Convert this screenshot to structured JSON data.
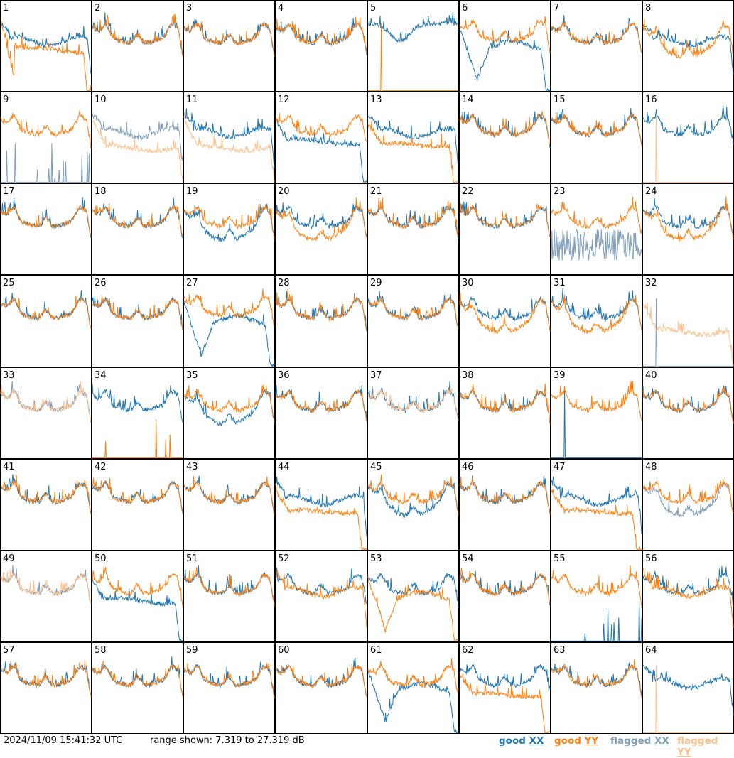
{
  "footer": {
    "timestamp": "2024/11/09 15:41:32 UTC",
    "range_label": "range shown:",
    "range_min": "7.319",
    "range_to": "to",
    "range_max": "27.319",
    "range_unit": "dB"
  },
  "legend": [
    {
      "quality": "good",
      "pol": "XX",
      "color": "#1f77b4"
    },
    {
      "quality": "good",
      "pol": "YY",
      "color": "#ff7f0e"
    },
    {
      "quality": "flagged",
      "pol": "XX",
      "color": "#7fa0bb"
    },
    {
      "quality": "flagged",
      "pol": "YY",
      "color": "#ffc08c"
    }
  ],
  "colors": {
    "good_xx": "#1f77b4",
    "good_yy": "#ff7f0e",
    "flagged_xx": "#7f9fba",
    "flagged_yy": "#ffbf8b",
    "panel_border": "#000000"
  },
  "chart_data": {
    "type": "line",
    "grid": "8x8 small multiples",
    "ylim": [
      7.319,
      27.319
    ],
    "yunit": "dB",
    "panels": [
      {
        "id": "1",
        "xx": "good",
        "yy": "good",
        "xx_shape": "flat-mid",
        "yy_shape": "drop-dropout"
      },
      {
        "id": "2",
        "xx": "good",
        "yy": "good",
        "xx_shape": "bowl",
        "yy_shape": "bowl"
      },
      {
        "id": "3",
        "xx": "good",
        "yy": "good",
        "xx_shape": "bowl",
        "yy_shape": "bowl"
      },
      {
        "id": "4",
        "xx": "good",
        "yy": "good",
        "xx_shape": "bowl",
        "yy_shape": "bowl"
      },
      {
        "id": "5",
        "xx": "good",
        "yy": "good",
        "xx_shape": "high-dip",
        "yy_shape": "floor-spike"
      },
      {
        "id": "6",
        "xx": "good",
        "yy": "good",
        "xx_shape": "deep-drop",
        "yy_shape": "bowl-high"
      },
      {
        "id": "7",
        "xx": "good",
        "yy": "good",
        "xx_shape": "bowl",
        "yy_shape": "bowl"
      },
      {
        "id": "8",
        "xx": "good",
        "yy": "good",
        "xx_shape": "flat-mid",
        "yy_shape": "bowl-low"
      },
      {
        "id": "9",
        "xx": "flagged",
        "yy": "good",
        "xx_shape": "floor-spikes",
        "yy_shape": "bowl"
      },
      {
        "id": "10",
        "xx": "flagged",
        "yy": "flagged",
        "xx_shape": "flat-mid",
        "yy_shape": "flat-low"
      },
      {
        "id": "11",
        "xx": "good",
        "yy": "flagged",
        "xx_shape": "flat-mid",
        "yy_shape": "flat-low"
      },
      {
        "id": "12",
        "xx": "good",
        "yy": "good",
        "xx_shape": "flat-drop",
        "yy_shape": "bowl"
      },
      {
        "id": "13",
        "xx": "good",
        "yy": "good",
        "xx_shape": "flat-mid",
        "yy_shape": "flat-low-drop"
      },
      {
        "id": "14",
        "xx": "good",
        "yy": "good",
        "xx_shape": "bowl",
        "yy_shape": "bowl"
      },
      {
        "id": "15",
        "xx": "good",
        "yy": "good",
        "xx_shape": "bowl",
        "yy_shape": "bowl"
      },
      {
        "id": "16",
        "xx": "good",
        "yy": "flagged",
        "xx_shape": "bowl",
        "yy_shape": "floor-spike"
      },
      {
        "id": "17",
        "xx": "good",
        "yy": "good",
        "xx_shape": "bowl",
        "yy_shape": "bowl"
      },
      {
        "id": "18",
        "xx": "good",
        "yy": "good",
        "xx_shape": "bowl",
        "yy_shape": "bowl"
      },
      {
        "id": "19",
        "xx": "good",
        "yy": "good",
        "xx_shape": "bowl-low",
        "yy_shape": "bowl"
      },
      {
        "id": "20",
        "xx": "good",
        "yy": "good",
        "xx_shape": "bowl",
        "yy_shape": "bowl-low"
      },
      {
        "id": "21",
        "xx": "good",
        "yy": "good",
        "xx_shape": "bowl",
        "yy_shape": "bowl"
      },
      {
        "id": "22",
        "xx": "good",
        "yy": "good",
        "xx_shape": "bowl",
        "yy_shape": "bowl"
      },
      {
        "id": "23",
        "xx": "flagged",
        "yy": "good",
        "xx_shape": "noise-low",
        "yy_shape": "bowl"
      },
      {
        "id": "24",
        "xx": "good",
        "yy": "good",
        "xx_shape": "bowl",
        "yy_shape": "bowl-low"
      },
      {
        "id": "25",
        "xx": "good",
        "yy": "good",
        "xx_shape": "bowl",
        "yy_shape": "bowl"
      },
      {
        "id": "26",
        "xx": "good",
        "yy": "good",
        "xx_shape": "bowl",
        "yy_shape": "bowl"
      },
      {
        "id": "27",
        "xx": "good",
        "yy": "good",
        "xx_shape": "deep-drop",
        "yy_shape": "bowl-high"
      },
      {
        "id": "28",
        "xx": "good",
        "yy": "good",
        "xx_shape": "bowl",
        "yy_shape": "bowl"
      },
      {
        "id": "29",
        "xx": "good",
        "yy": "good",
        "xx_shape": "bowl",
        "yy_shape": "bowl"
      },
      {
        "id": "30",
        "xx": "good",
        "yy": "good",
        "xx_shape": "bowl",
        "yy_shape": "bowl-low"
      },
      {
        "id": "31",
        "xx": "good",
        "yy": "good",
        "xx_shape": "bowl",
        "yy_shape": "bowl-low"
      },
      {
        "id": "32",
        "xx": "flagged",
        "yy": "flagged",
        "xx_shape": "floor-spike",
        "yy_shape": "flat-low"
      },
      {
        "id": "33",
        "xx": "flagged",
        "yy": "flagged",
        "xx_shape": "bowl",
        "yy_shape": "bowl"
      },
      {
        "id": "34",
        "xx": "good",
        "yy": "good",
        "xx_shape": "bowl",
        "yy_shape": "floor-spikes"
      },
      {
        "id": "35",
        "xx": "good",
        "yy": "good",
        "xx_shape": "bowl-low",
        "yy_shape": "bowl"
      },
      {
        "id": "36",
        "xx": "good",
        "yy": "good",
        "xx_shape": "bowl",
        "yy_shape": "bowl"
      },
      {
        "id": "37",
        "xx": "good",
        "yy": "flagged",
        "xx_shape": "bowl",
        "yy_shape": "bowl"
      },
      {
        "id": "38",
        "xx": "good",
        "yy": "good",
        "xx_shape": "bowl",
        "yy_shape": "bowl"
      },
      {
        "id": "39",
        "xx": "good",
        "yy": "good",
        "xx_shape": "floor-spike",
        "yy_shape": "bowl"
      },
      {
        "id": "40",
        "xx": "good",
        "yy": "good",
        "xx_shape": "bowl",
        "yy_shape": "bowl"
      },
      {
        "id": "41",
        "xx": "good",
        "yy": "good",
        "xx_shape": "bowl",
        "yy_shape": "bowl"
      },
      {
        "id": "42",
        "xx": "good",
        "yy": "good",
        "xx_shape": "bowl",
        "yy_shape": "bowl"
      },
      {
        "id": "43",
        "xx": "good",
        "yy": "good",
        "xx_shape": "bowl",
        "yy_shape": "bowl"
      },
      {
        "id": "44",
        "xx": "good",
        "yy": "good",
        "xx_shape": "flat-mid",
        "yy_shape": "flat-low-drop"
      },
      {
        "id": "45",
        "xx": "good",
        "yy": "good",
        "xx_shape": "bowl-low",
        "yy_shape": "bowl"
      },
      {
        "id": "46",
        "xx": "good",
        "yy": "good",
        "xx_shape": "bowl",
        "yy_shape": "bowl"
      },
      {
        "id": "47",
        "xx": "good",
        "yy": "good",
        "xx_shape": "flat-mid",
        "yy_shape": "flat-low-drop"
      },
      {
        "id": "48",
        "xx": "flagged",
        "yy": "good",
        "xx_shape": "bowl-low",
        "yy_shape": "bowl"
      },
      {
        "id": "49",
        "xx": "flagged",
        "yy": "flagged",
        "xx_shape": "bowl",
        "yy_shape": "bowl"
      },
      {
        "id": "50",
        "xx": "good",
        "yy": "good",
        "xx_shape": "flat-drop",
        "yy_shape": "bowl"
      },
      {
        "id": "51",
        "xx": "good",
        "yy": "good",
        "xx_shape": "bowl",
        "yy_shape": "bowl"
      },
      {
        "id": "52",
        "xx": "good",
        "yy": "good",
        "xx_shape": "bowl",
        "yy_shape": "flat-mid"
      },
      {
        "id": "53",
        "xx": "good",
        "yy": "good",
        "xx_shape": "bowl",
        "yy_shape": "deep-drop"
      },
      {
        "id": "54",
        "xx": "good",
        "yy": "good",
        "xx_shape": "bowl",
        "yy_shape": "bowl"
      },
      {
        "id": "55",
        "xx": "good",
        "yy": "good",
        "xx_shape": "floor-spikes",
        "yy_shape": "bowl"
      },
      {
        "id": "56",
        "xx": "good",
        "yy": "good",
        "xx_shape": "bowl",
        "yy_shape": "flat-mid"
      },
      {
        "id": "57",
        "xx": "good",
        "yy": "good",
        "xx_shape": "bowl",
        "yy_shape": "bowl"
      },
      {
        "id": "58",
        "xx": "good",
        "yy": "good",
        "xx_shape": "bowl",
        "yy_shape": "bowl"
      },
      {
        "id": "59",
        "xx": "good",
        "yy": "good",
        "xx_shape": "bowl",
        "yy_shape": "bowl"
      },
      {
        "id": "60",
        "xx": "good",
        "yy": "good",
        "xx_shape": "bowl",
        "yy_shape": "bowl"
      },
      {
        "id": "61",
        "xx": "good",
        "yy": "good",
        "xx_shape": "deep-drop",
        "yy_shape": "bowl"
      },
      {
        "id": "62",
        "xx": "good",
        "yy": "good",
        "xx_shape": "bowl",
        "yy_shape": "flat-low-drop"
      },
      {
        "id": "63",
        "xx": "good",
        "yy": "good",
        "xx_shape": "bowl",
        "yy_shape": "bowl"
      },
      {
        "id": "64",
        "xx": "good",
        "yy": "flagged",
        "xx_shape": "flat-mid",
        "yy_shape": "floor-spike"
      }
    ]
  }
}
